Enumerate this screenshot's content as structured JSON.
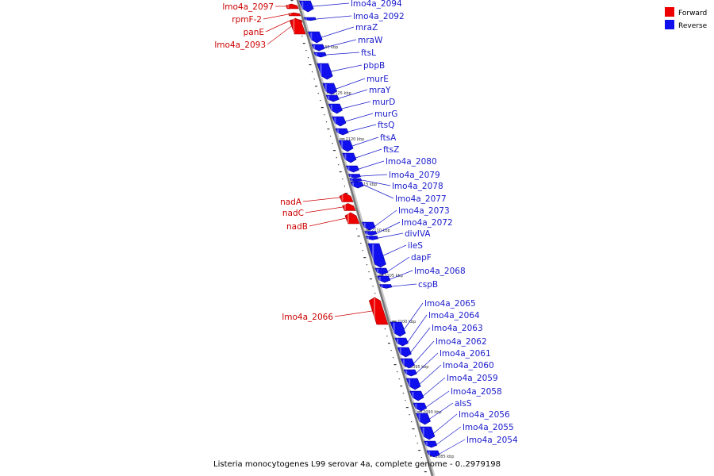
{
  "legend": {
    "forward": {
      "label": "Forward",
      "color": "#ee0000"
    },
    "reverse": {
      "label": "Reverse",
      "color": "#1010ee"
    }
  },
  "caption": "Listeria monocytogenes L99 serovar 4a, complete genome - 0..2979198",
  "kbp_ticks": [
    "2130 kbp",
    "2125 kbp",
    "2120 kbp",
    "2115 kbp",
    "2110 kbp",
    "2105 kbp",
    "2100 kbp",
    "2095 kbp",
    "2090 kbp",
    "2085 kbp"
  ],
  "genes": [
    {
      "name": "lmo4a_2097",
      "strand": "forward"
    },
    {
      "name": "rpmF-2",
      "strand": "forward"
    },
    {
      "name": "panE",
      "strand": "forward"
    },
    {
      "name": "lmo4a_2093",
      "strand": "forward"
    },
    {
      "name": "lmo4a_2094",
      "strand": "reverse"
    },
    {
      "name": "lmo4a_2092",
      "strand": "reverse"
    },
    {
      "name": "mraZ",
      "strand": "reverse"
    },
    {
      "name": "mraW",
      "strand": "reverse"
    },
    {
      "name": "ftsL",
      "strand": "reverse"
    },
    {
      "name": "pbpB",
      "strand": "reverse"
    },
    {
      "name": "murE",
      "strand": "reverse"
    },
    {
      "name": "mraY",
      "strand": "reverse"
    },
    {
      "name": "murD",
      "strand": "reverse"
    },
    {
      "name": "murG",
      "strand": "reverse"
    },
    {
      "name": "ftsQ",
      "strand": "reverse"
    },
    {
      "name": "ftsA",
      "strand": "reverse"
    },
    {
      "name": "ftsZ",
      "strand": "reverse"
    },
    {
      "name": "lmo4a_2080",
      "strand": "reverse"
    },
    {
      "name": "lmo4a_2079",
      "strand": "reverse"
    },
    {
      "name": "lmo4a_2078",
      "strand": "reverse"
    },
    {
      "name": "lmo4a_2077",
      "strand": "reverse"
    },
    {
      "name": "nadA",
      "strand": "forward"
    },
    {
      "name": "nadC",
      "strand": "forward"
    },
    {
      "name": "nadB",
      "strand": "forward"
    },
    {
      "name": "lmo4a_2073",
      "strand": "reverse"
    },
    {
      "name": "lmo4a_2072",
      "strand": "reverse"
    },
    {
      "name": "divIVA",
      "strand": "reverse"
    },
    {
      "name": "ileS",
      "strand": "reverse"
    },
    {
      "name": "dapF",
      "strand": "reverse"
    },
    {
      "name": "lmo4a_2068",
      "strand": "reverse"
    },
    {
      "name": "cspB",
      "strand": "reverse"
    },
    {
      "name": "lmo4a_2066",
      "strand": "forward"
    },
    {
      "name": "lmo4a_2065",
      "strand": "reverse"
    },
    {
      "name": "lmo4a_2064",
      "strand": "reverse"
    },
    {
      "name": "lmo4a_2063",
      "strand": "reverse"
    },
    {
      "name": "lmo4a_2062",
      "strand": "reverse"
    },
    {
      "name": "lmo4a_2061",
      "strand": "reverse"
    },
    {
      "name": "lmo4a_2060",
      "strand": "reverse"
    },
    {
      "name": "lmo4a_2059",
      "strand": "reverse"
    },
    {
      "name": "lmo4a_2058",
      "strand": "reverse"
    },
    {
      "name": "alsS",
      "strand": "reverse"
    },
    {
      "name": "lmo4a_2056",
      "strand": "reverse"
    },
    {
      "name": "lmo4a_2055",
      "strand": "reverse"
    },
    {
      "name": "lmo4a_2054",
      "strand": "reverse"
    }
  ]
}
